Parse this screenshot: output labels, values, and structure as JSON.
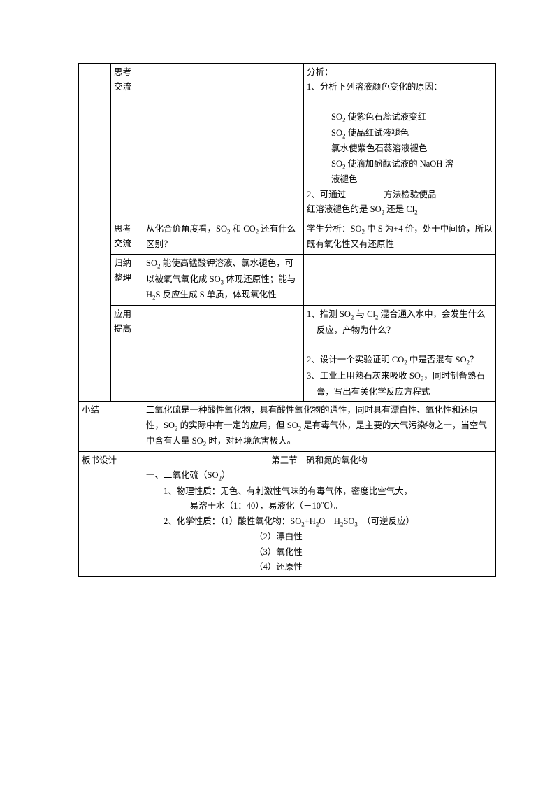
{
  "rows": [
    {
      "c0": "",
      "c1": "思考交流",
      "c2_lines": [],
      "c3_lines": [
        "分析：",
        "1、分析下列溶液颜色变化的原因：",
        "",
        {
          "cls": "hang",
          "html": "SO<sub class='sub'>2</sub> 使紫色石蕊试液变红"
        },
        {
          "cls": "hang",
          "html": "SO<sub class='sub'>2</sub> 使品红试液褪色"
        },
        {
          "cls": "hang",
          "html": "氯水使紫色石蕊溶液褪色"
        },
        {
          "cls": "hang",
          "html": "SO<sub class='sub'>2</sub> 使滴加酚酞试液的 NaOH 溶"
        },
        {
          "cls": "hang",
          "html": "液褪色"
        },
        {
          "html": "2、可通过<span class='blank'></span>方法检验使品"
        },
        {
          "html": "红溶液褪色的是 SO<sub class='sub'>2</sub> 还是 Cl<sub class='sub'>2</sub>"
        }
      ]
    },
    {
      "c0": "",
      "c1": "思考交流",
      "c2_lines": [
        {
          "html": "从化合价角度看，SO<sub class='sub'>2</sub> 和 CO<sub class='sub'>2</sub> 还有什么区别？"
        }
      ],
      "c3_lines": [
        {
          "html": "学生分析：SO<sub class='sub'>2</sub> 中 S 为+4 价，处于中间价，所以既有氧化性又有还原性"
        }
      ]
    },
    {
      "c0": "",
      "c1": "归纳整理",
      "c2_lines": [
        {
          "html": "SO<sub class='sub'>2</sub> 能使高锰酸钾溶液、氯水褪色，可以被氧气氧化成 SO<sub class='sub'>3</sub> 体现还原性；能与 H<sub class='sub'>2</sub>S 反应生成 S 单质，体现氧化性"
        }
      ],
      "c3_lines": []
    },
    {
      "c0": "",
      "c1": "应用提高",
      "c2_lines": [],
      "c3_lines": [
        {
          "cls": "indent1",
          "html": "1、推测 SO<sub class='sub'>2</sub> 与 Cl<sub class='sub'>2</sub> 混合通入水中，会发生什么反应，产物为什么？"
        },
        "",
        {
          "cls": "indent1",
          "html": "2、设计一个实验证明 CO<sub class='sub'>2</sub> 中是否混有 SO<sub class='sub'>2</sub>？"
        },
        {
          "cls": "indent1",
          "html": "3、工业上用熟石灰来吸收 SO<sub class='sub'>2</sub>，同时制备熟石膏，写出有关化学反应方程式"
        }
      ]
    }
  ],
  "summary": {
    "label": "小结",
    "html": "二氧化硫是一种酸性氧化物，具有酸性氧化物的通性，同时具有漂白性、氧化性和还原性，SO<sub class='sub'>2</sub> 的实际中有一定的应用，但 SO<sub class='sub'>2</sub> 是有毒气体，是主要的大气污染物之一，当空气中含有大量 SO<sub class='sub'>2</sub> 时，对环境危害极大。"
  },
  "board": {
    "label": "板书设计",
    "title": "第三节　硫和氮的氧化物",
    "lines": [
      {
        "cls": "h1",
        "html": "一、二氧化硫（SO<sub class='sub'>2</sub>）"
      },
      {
        "cls": "lvl1",
        "html": "1、物理性质：无色、有刺激性气味的有毒气体，密度比空气大，"
      },
      {
        "cls": "lvl2",
        "html": "易溶于水（1：40），易液化（－10℃）。"
      },
      {
        "cls": "lvl1",
        "html": "2、化学性质：（1）酸性氧化物：SO<sub class='sub'>2</sub>+H<sub class='sub'>2</sub>O　H<sub class='sub'>2</sub>SO<sub class='sub'>3</sub>　（可逆反应）"
      },
      {
        "cls": "lvl2b",
        "html": "（2）漂白性"
      },
      {
        "cls": "lvl2b",
        "html": "（3）氧化性"
      },
      {
        "cls": "lvl2b",
        "html": "（4）还原性"
      }
    ]
  }
}
